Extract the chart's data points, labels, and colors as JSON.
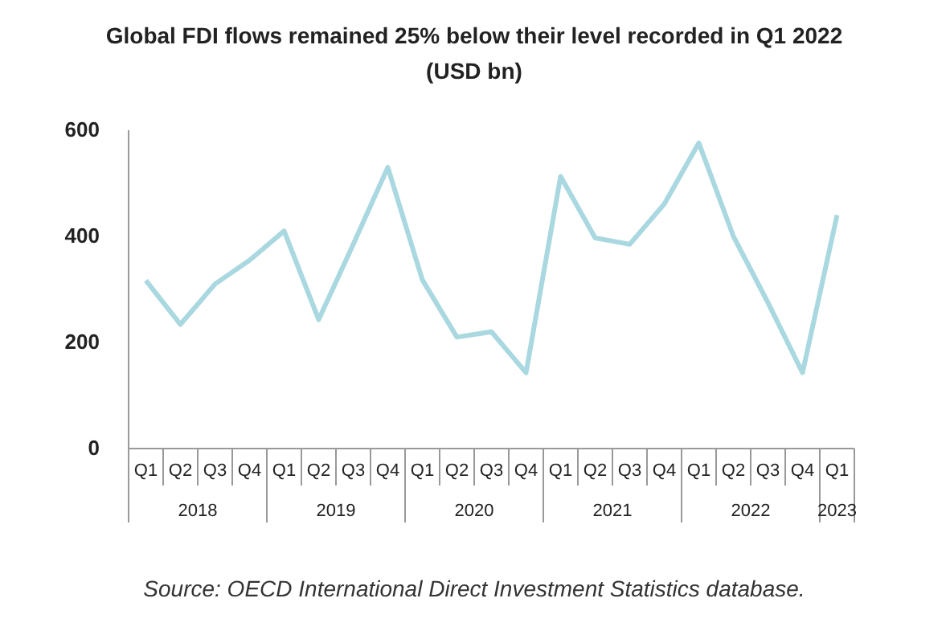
{
  "chart_data": {
    "type": "line",
    "title": "Global FDI flows remained 25% below their level recorded in Q1 2022 (USD bn)",
    "categories": [
      "Q1",
      "Q2",
      "Q3",
      "Q4",
      "Q1",
      "Q2",
      "Q3",
      "Q4",
      "Q1",
      "Q2",
      "Q3",
      "Q4",
      "Q1",
      "Q2",
      "Q3",
      "Q4",
      "Q1",
      "Q2",
      "Q3",
      "Q4",
      "Q1"
    ],
    "series": [
      {
        "color": "#a9d8e0",
        "values": [
          317,
          234,
          310,
          355,
          410,
          243,
          385,
          530,
          318,
          210,
          220,
          143,
          513,
          397,
          385,
          461,
          576,
          400,
          275,
          143,
          440
        ]
      }
    ],
    "ylim": [
      0,
      600
    ],
    "yticks": [
      0,
      200,
      400,
      600
    ],
    "grid": false,
    "marker": "none",
    "line_style": "solid",
    "annotations": [
      "2018",
      "2019",
      "2020",
      "2021",
      "2022",
      "2023",
      "Source: OECD International Direct Investment Statistics database."
    ]
  }
}
